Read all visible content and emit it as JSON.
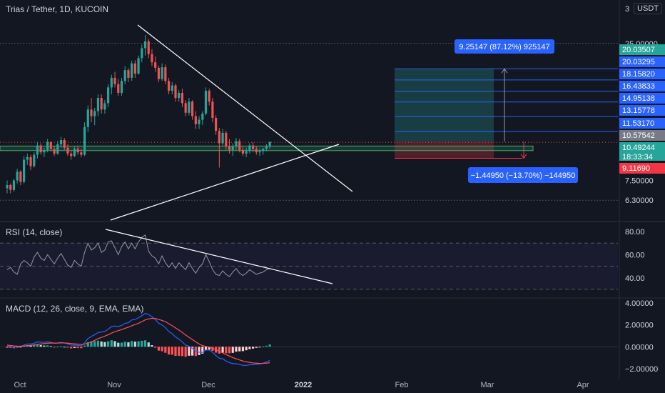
{
  "header": {
    "title": "Trias / Tether, 1D, KUCOIN",
    "currency": "USDT",
    "top_axis_clip": "3",
    "top_axis_clip2": "0"
  },
  "colors": {
    "background": "#131722",
    "up": "#26a69a",
    "down": "#ef5350",
    "trendline": "#ffffff",
    "target_blue": "#2962ff",
    "stop_red": "#f23645",
    "rsi_line": "#9598a1",
    "macd_line": "#2962ff",
    "signal_line": "#ff5252",
    "grid": "#2a2e39"
  },
  "chart_data": [
    {
      "type": "candlestick",
      "pane": "price",
      "y_scale": "log",
      "ylim": [
        6.0,
        30.0
      ],
      "y_ticks": [
        "25.00000",
        "7.50000",
        "6.30000"
      ],
      "x_ticks": [
        "Oct",
        "Nov",
        "Dec",
        "2022",
        "Feb",
        "Mar",
        "Apr"
      ],
      "price_labels": [
        {
          "text": "20.03507",
          "value": 20.03507,
          "kind": "green"
        },
        {
          "text": "20.03295",
          "value": 20.03295,
          "kind": "blue"
        },
        {
          "text": "18.15820",
          "value": 18.1582,
          "kind": "blue"
        },
        {
          "text": "16.43833",
          "value": 16.43833,
          "kind": "blue"
        },
        {
          "text": "14.95138",
          "value": 14.95138,
          "kind": "blue"
        },
        {
          "text": "13.15778",
          "value": 13.15778,
          "kind": "blue"
        },
        {
          "text": "11.53170",
          "value": 11.5317,
          "kind": "blue"
        },
        {
          "text": "10.57542",
          "value": 10.57542,
          "kind": "grey"
        },
        {
          "text": "10.49244",
          "value": 10.49244,
          "kind": "price"
        },
        {
          "text": "18:33:34",
          "value": null,
          "kind": "countdown"
        },
        {
          "text": "9.11690",
          "value": 9.1169,
          "kind": "red"
        }
      ],
      "annotations": {
        "target_label": "9.25147 (87.12%) 925147",
        "stop_label": "−1.44950 (−13.70%) −144950"
      },
      "support_zone": [
        9.75,
        10.15
      ],
      "ohlc": [
        [
          7.0,
          7.5,
          6.7,
          7.2
        ],
        [
          7.2,
          7.3,
          6.7,
          6.9
        ],
        [
          6.9,
          7.6,
          6.8,
          7.5
        ],
        [
          7.5,
          8.3,
          7.3,
          8.1
        ],
        [
          8.1,
          8.2,
          7.2,
          7.4
        ],
        [
          7.4,
          9.3,
          7.3,
          9.0
        ],
        [
          9.0,
          9.5,
          8.6,
          9.2
        ],
        [
          9.2,
          9.4,
          8.2,
          8.5
        ],
        [
          8.5,
          9.6,
          8.4,
          9.4
        ],
        [
          9.4,
          10.5,
          9.1,
          10.2
        ],
        [
          10.2,
          10.4,
          9.4,
          9.6
        ],
        [
          9.6,
          10.0,
          9.2,
          9.8
        ],
        [
          9.8,
          10.8,
          9.6,
          10.5
        ],
        [
          10.5,
          10.6,
          9.7,
          9.9
        ],
        [
          9.9,
          10.2,
          9.3,
          9.5
        ],
        [
          9.5,
          10.6,
          9.4,
          10.3
        ],
        [
          10.3,
          11.0,
          10.0,
          10.7
        ],
        [
          10.7,
          10.9,
          9.8,
          10.0
        ],
        [
          10.0,
          10.3,
          9.3,
          9.5
        ],
        [
          9.5,
          9.7,
          9.0,
          9.3
        ],
        [
          9.3,
          10.1,
          9.2,
          9.9
        ],
        [
          9.9,
          10.2,
          9.4,
          9.6
        ],
        [
          9.6,
          9.9,
          9.2,
          9.4
        ],
        [
          9.4,
          12.5,
          9.3,
          12.0
        ],
        [
          12.0,
          14.5,
          11.5,
          14.0
        ],
        [
          14.0,
          15.5,
          12.5,
          13.2
        ],
        [
          13.2,
          14.2,
          12.2,
          13.8
        ],
        [
          13.8,
          16.0,
          13.2,
          15.5
        ],
        [
          15.5,
          16.0,
          13.5,
          14.0
        ],
        [
          14.0,
          15.2,
          13.5,
          14.8
        ],
        [
          14.8,
          17.5,
          14.3,
          17.0
        ],
        [
          17.0,
          19.0,
          16.0,
          18.5
        ],
        [
          18.5,
          19.5,
          17.0,
          17.5
        ],
        [
          17.5,
          18.3,
          15.8,
          16.2
        ],
        [
          16.2,
          18.5,
          15.8,
          18.0
        ],
        [
          18.0,
          20.5,
          17.5,
          19.8
        ],
        [
          19.8,
          20.2,
          17.8,
          18.5
        ],
        [
          18.5,
          21.5,
          18.0,
          21.0
        ],
        [
          21.0,
          21.6,
          18.5,
          19.2
        ],
        [
          19.2,
          22.5,
          19.0,
          22.0
        ],
        [
          22.0,
          24.8,
          21.2,
          24.0
        ],
        [
          24.0,
          27.0,
          22.5,
          25.5
        ],
        [
          25.5,
          26.0,
          22.0,
          22.8
        ],
        [
          22.8,
          23.8,
          20.5,
          21.2
        ],
        [
          21.2,
          22.3,
          19.5,
          20.2
        ],
        [
          20.2,
          20.6,
          17.8,
          18.3
        ],
        [
          18.3,
          21.0,
          18.0,
          20.3
        ],
        [
          20.3,
          20.8,
          17.5,
          18.0
        ],
        [
          18.0,
          18.5,
          16.0,
          16.5
        ],
        [
          16.5,
          17.8,
          16.0,
          17.3
        ],
        [
          17.3,
          17.6,
          15.0,
          15.5
        ],
        [
          15.5,
          16.6,
          15.0,
          16.2
        ],
        [
          16.2,
          16.8,
          14.3,
          14.8
        ],
        [
          14.8,
          15.2,
          13.2,
          13.6
        ],
        [
          13.6,
          15.5,
          13.3,
          15.0
        ],
        [
          15.0,
          15.2,
          12.8,
          13.2
        ],
        [
          13.2,
          13.8,
          11.8,
          12.3
        ],
        [
          12.3,
          13.2,
          11.8,
          12.8
        ],
        [
          12.8,
          13.8,
          12.2,
          13.5
        ],
        [
          13.5,
          17.0,
          13.3,
          16.5
        ],
        [
          16.5,
          16.8,
          14.5,
          15.0
        ],
        [
          15.0,
          15.5,
          12.5,
          13.0
        ],
        [
          13.0,
          13.3,
          11.2,
          11.6
        ],
        [
          11.6,
          11.9,
          8.4,
          10.4
        ],
        [
          10.4,
          11.8,
          10.2,
          11.4
        ],
        [
          11.4,
          11.6,
          9.8,
          10.1
        ],
        [
          10.1,
          10.8,
          9.5,
          9.8
        ],
        [
          9.8,
          10.4,
          9.3,
          10.1
        ],
        [
          10.1,
          10.9,
          9.8,
          10.6
        ],
        [
          10.6,
          10.8,
          9.6,
          9.8
        ],
        [
          9.8,
          10.2,
          9.3,
          9.5
        ],
        [
          9.5,
          10.0,
          9.2,
          9.7
        ],
        [
          9.7,
          10.4,
          9.5,
          10.2
        ],
        [
          10.2,
          10.5,
          9.6,
          9.9
        ],
        [
          9.9,
          10.1,
          9.4,
          9.6
        ],
        [
          9.6,
          9.9,
          9.3,
          9.7
        ],
        [
          9.7,
          10.0,
          9.4,
          9.9
        ],
        [
          9.9,
          10.3,
          9.7,
          10.1
        ],
        [
          10.1,
          10.6,
          9.9,
          10.5
        ]
      ]
    },
    {
      "type": "line",
      "pane": "rsi",
      "title": "RSI (14, close)",
      "ylim": [
        25,
        85
      ],
      "y_ticks": [
        "80.00",
        "60.00",
        "40.00"
      ],
      "band": [
        30,
        70
      ],
      "midline": 50,
      "series": [
        {
          "values": [
            47,
            49,
            45,
            43,
            52,
            55,
            53,
            50,
            58,
            62,
            57,
            55,
            60,
            56,
            52,
            57,
            61,
            56,
            51,
            49,
            55,
            52,
            50,
            62,
            70,
            64,
            66,
            70,
            62,
            64,
            71,
            72,
            66,
            60,
            67,
            71,
            65,
            70,
            65,
            71,
            75,
            77,
            63,
            59,
            57,
            52,
            59,
            53,
            49,
            53,
            48,
            53,
            50,
            47,
            53,
            48,
            44,
            49,
            52,
            60,
            54,
            47,
            43,
            42,
            46,
            43,
            41,
            45,
            48,
            44,
            42,
            44,
            47,
            45,
            43,
            44,
            45,
            47,
            48
          ]
        }
      ]
    },
    {
      "type": "bar+line",
      "pane": "macd",
      "title": "MACD (12, 26, close, 9, EMA, EMA)",
      "ylim": [
        -2.4,
        4.4
      ],
      "y_ticks": [
        "4.00000",
        "2.00000",
        "0.00000",
        "−2.00000"
      ],
      "series": [
        {
          "values": [
            0.05,
            0.02,
            -0.05,
            0.0,
            0.02,
            0.15,
            0.25,
            0.25,
            0.32,
            0.45,
            0.42,
            0.4,
            0.45,
            0.4,
            0.32,
            0.35,
            0.4,
            0.35,
            0.25,
            0.15,
            0.16,
            0.12,
            0.08,
            0.35,
            0.75,
            0.95,
            1.1,
            1.3,
            1.35,
            1.4,
            1.6,
            1.85,
            1.9,
            1.85,
            1.95,
            2.15,
            2.2,
            2.45,
            2.5,
            2.65,
            2.85,
            3.05,
            2.95,
            2.75,
            2.5,
            2.15,
            2.0,
            1.75,
            1.4,
            1.2,
            0.9,
            0.7,
            0.45,
            0.15,
            0.05,
            -0.15,
            -0.4,
            -0.5,
            -0.52,
            -0.3,
            -0.3,
            -0.5,
            -0.8,
            -1.05,
            -1.1,
            -1.3,
            -1.45,
            -1.55,
            -1.55,
            -1.62,
            -1.7,
            -1.7,
            -1.65,
            -1.65,
            -1.6,
            -1.58,
            -1.5,
            -1.4,
            -1.25
          ]
        },
        {
          "values": [
            0.15,
            0.12,
            0.08,
            0.06,
            0.05,
            0.07,
            0.1,
            0.13,
            0.17,
            0.22,
            0.26,
            0.29,
            0.32,
            0.34,
            0.34,
            0.34,
            0.35,
            0.35,
            0.33,
            0.3,
            0.27,
            0.24,
            0.21,
            0.24,
            0.34,
            0.46,
            0.59,
            0.74,
            0.86,
            0.97,
            1.1,
            1.25,
            1.38,
            1.48,
            1.57,
            1.69,
            1.79,
            1.92,
            2.03,
            2.15,
            2.3,
            2.46,
            2.55,
            2.6,
            2.59,
            2.5,
            2.41,
            2.3,
            2.11,
            1.93,
            1.73,
            1.53,
            1.31,
            1.07,
            0.87,
            0.66,
            0.45,
            0.26,
            0.11,
            0.03,
            -0.04,
            -0.13,
            -0.26,
            -0.42,
            -0.56,
            -0.71,
            -0.85,
            -0.99,
            -1.1,
            -1.2,
            -1.3,
            -1.38,
            -1.43,
            -1.48,
            -1.5,
            -1.52,
            -1.52,
            -1.5,
            -1.46
          ]
        }
      ]
    }
  ]
}
